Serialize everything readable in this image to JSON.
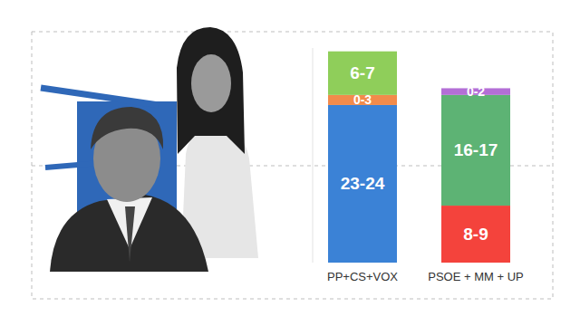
{
  "chart_data": {
    "type": "bar",
    "stacked": true,
    "data_labels": true,
    "tick_labels": "x",
    "grid": false,
    "categories": [
      "PP+CS+VOX",
      "PSOE + MM + UP"
    ],
    "ylim": [
      0,
      32
    ],
    "series": [
      {
        "color": "#3b82d6",
        "values": [
          23.5,
          null
        ],
        "value_labels": [
          "23-24",
          null
        ]
      },
      {
        "color": "#f28b4b",
        "values": [
          1.5,
          null
        ],
        "value_labels": [
          "0-3",
          null
        ]
      },
      {
        "color": "#8fce5a",
        "values": [
          6.5,
          null
        ],
        "value_labels": [
          "6-7",
          null
        ]
      },
      {
        "color": "#f4433c",
        "values": [
          null,
          8.5
        ],
        "value_labels": [
          null,
          "8-9"
        ]
      },
      {
        "color": "#5db374",
        "values": [
          null,
          16.5
        ],
        "value_labels": [
          null,
          "16-17"
        ]
      },
      {
        "color": "#b36fd6",
        "values": [
          null,
          1
        ],
        "value_labels": [
          null,
          "0-2"
        ]
      }
    ]
  }
}
